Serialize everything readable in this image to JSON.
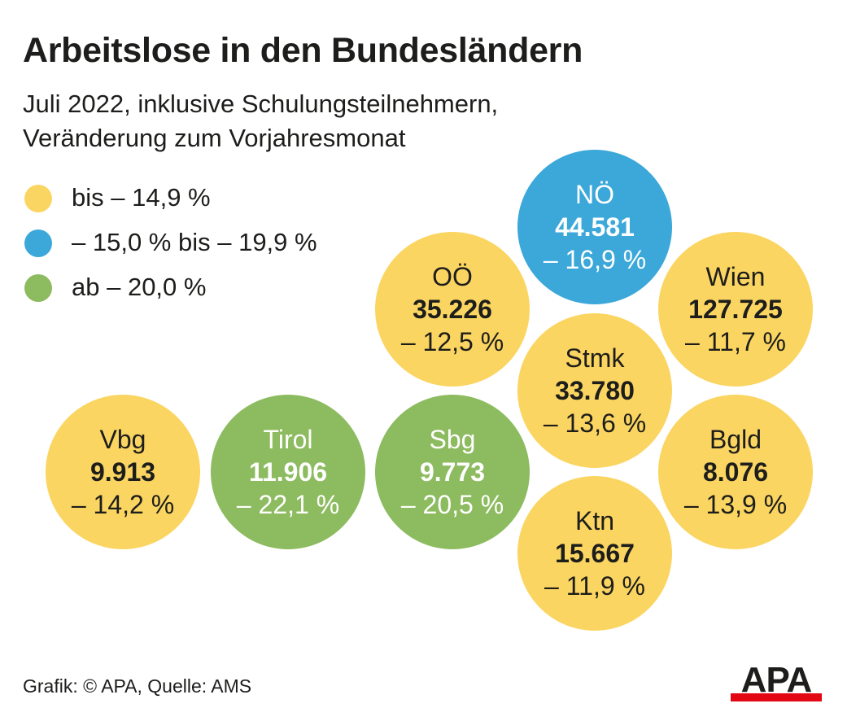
{
  "title": "Arbeitslose in den Bundesländern",
  "subtitle_line1": "Juli 2022, inklusive Schulungsteilnehmern,",
  "subtitle_line2": "Veränderung zum Vorjahresmonat",
  "legend": [
    {
      "label": "bis – 14,9 %",
      "color": "#fbd561"
    },
    {
      "label": "– 15,0 % bis – 19,9 %",
      "color": "#3ba8d9"
    },
    {
      "label": "ab – 20,0 %",
      "color": "#8dbb5f"
    }
  ],
  "footer": "Grafik: © APA, Quelle: AMS",
  "logo_text": "APA",
  "colors": {
    "yellow": "#fbd561",
    "blue": "#3ba8d9",
    "green": "#8dbb5f",
    "logo_red": "#e30613"
  },
  "chart_data": {
    "type": "bubble-cluster",
    "title": "Arbeitslose in den Bundesländern",
    "subtitle": "Juli 2022, inklusive Schulungsteilnehmern, Veränderung zum Vorjahresmonat",
    "regions": [
      {
        "name": "NÖ",
        "value": "44.581",
        "change": "– 16,9 %",
        "category": "blue"
      },
      {
        "name": "OÖ",
        "value": "35.226",
        "change": "– 12,5 %",
        "category": "yellow"
      },
      {
        "name": "Wien",
        "value": "127.725",
        "change": "– 11,7 %",
        "category": "yellow"
      },
      {
        "name": "Stmk",
        "value": "33.780",
        "change": "– 13,6 %",
        "category": "yellow"
      },
      {
        "name": "Vbg",
        "value": "9.913",
        "change": "– 14,2 %",
        "category": "yellow"
      },
      {
        "name": "Tirol",
        "value": "11.906",
        "change": "– 22,1 %",
        "category": "green"
      },
      {
        "name": "Sbg",
        "value": "9.773",
        "change": "– 20,5 %",
        "category": "green"
      },
      {
        "name": "Bgld",
        "value": "8.076",
        "change": "– 13,9 %",
        "category": "yellow"
      },
      {
        "name": "Ktn",
        "value": "15.667",
        "change": "– 11,9 %",
        "category": "yellow"
      }
    ]
  }
}
